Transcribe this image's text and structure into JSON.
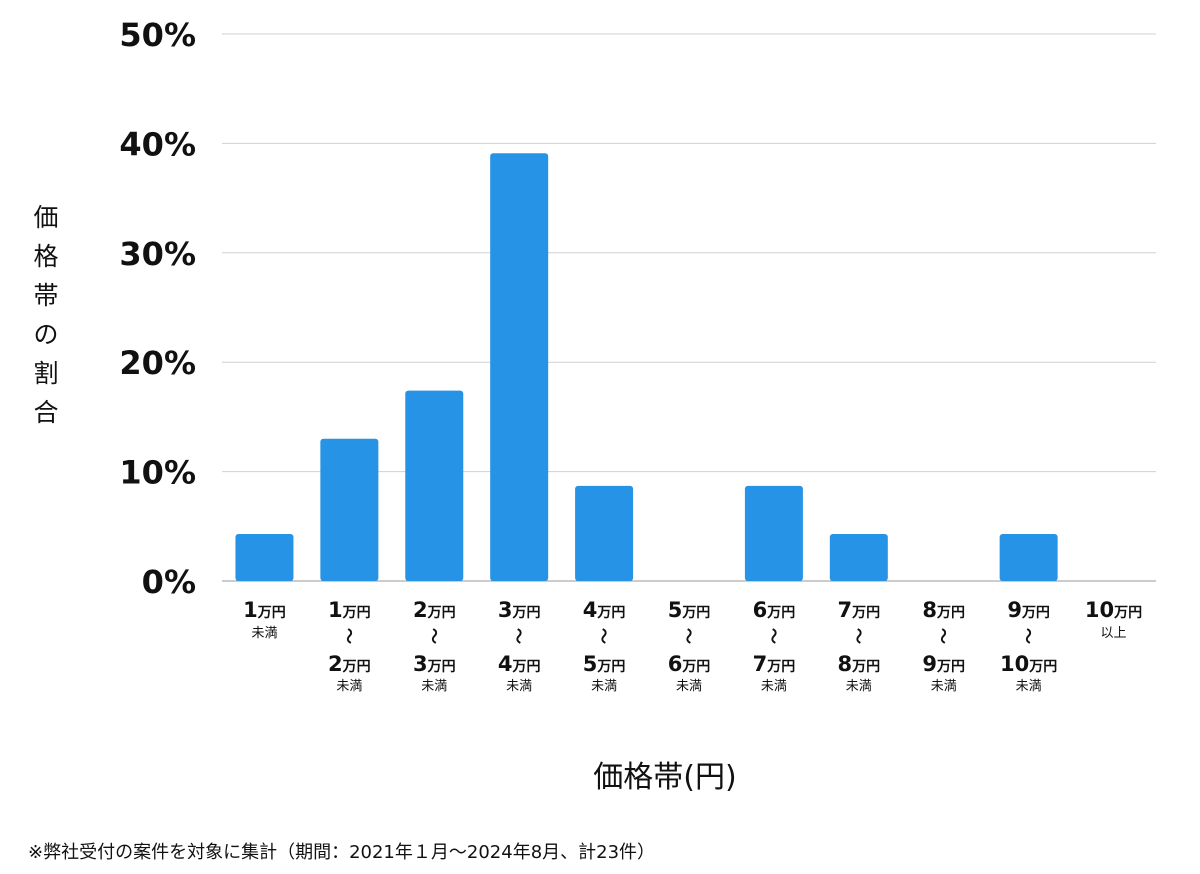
{
  "chart_data": {
    "type": "bar",
    "xlabel": "価格帯(円)",
    "ylabel": "価格帯の割合",
    "ylim": [
      0,
      50
    ],
    "yticks": [
      "0%",
      "10%",
      "20%",
      "30%",
      "40%",
      "50%"
    ],
    "grid": true,
    "bar_color": "#2693e6",
    "grid_color": "#d0d0d0",
    "unit_label": "万円",
    "range_mark": "〜",
    "categories": [
      {
        "from": "1",
        "to": "",
        "suffix": "未満"
      },
      {
        "from": "1",
        "to": "2",
        "suffix": "未満"
      },
      {
        "from": "2",
        "to": "3",
        "suffix": "未満"
      },
      {
        "from": "3",
        "to": "4",
        "suffix": "未満"
      },
      {
        "from": "4",
        "to": "5",
        "suffix": "未満"
      },
      {
        "from": "5",
        "to": "6",
        "suffix": "未満"
      },
      {
        "from": "6",
        "to": "7",
        "suffix": "未満"
      },
      {
        "from": "7",
        "to": "8",
        "suffix": "未満"
      },
      {
        "from": "8",
        "to": "9",
        "suffix": "未満"
      },
      {
        "from": "9",
        "to": "10",
        "suffix": "未満"
      },
      {
        "from": "10",
        "to": "",
        "suffix": "以上"
      }
    ],
    "values": [
      4.3,
      13.0,
      17.4,
      39.1,
      8.7,
      0,
      8.7,
      4.3,
      0,
      4.3,
      0
    ]
  },
  "footnote": "※弊社受付の案件を対象に集計（期間：2021年１月〜2024年8月、計23件）"
}
